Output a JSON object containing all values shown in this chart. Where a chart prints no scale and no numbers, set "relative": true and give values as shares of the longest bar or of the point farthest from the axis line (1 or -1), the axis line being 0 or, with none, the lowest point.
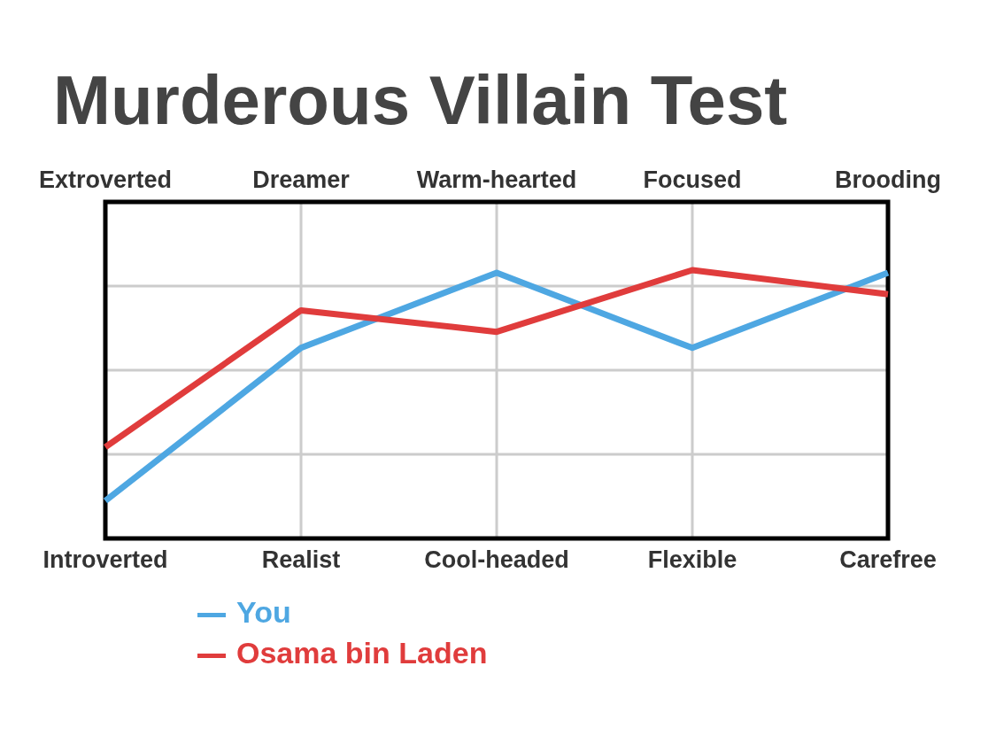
{
  "chart_data": {
    "type": "line",
    "title": "Murderous Villain Test",
    "relative": true,
    "categories": [
      "Introverted",
      "Realist",
      "Cool-headed",
      "Flexible",
      "Carefree"
    ],
    "annotations": [
      "Extroverted",
      "Dreamer",
      "Warm-hearted",
      "Focused",
      "Brooding"
    ],
    "series": [
      {
        "name": "You",
        "color": "#4ea7e2",
        "values": [
          0.14,
          0.71,
          0.99,
          0.71,
          0.99
        ]
      },
      {
        "name": "Osama bin Laden",
        "color": "#e03c3c",
        "values": [
          0.34,
          0.85,
          0.77,
          1,
          0.91
        ]
      }
    ],
    "grid": true,
    "legend": "bottom left",
    "marker": "none",
    "line_style": "solid"
  }
}
